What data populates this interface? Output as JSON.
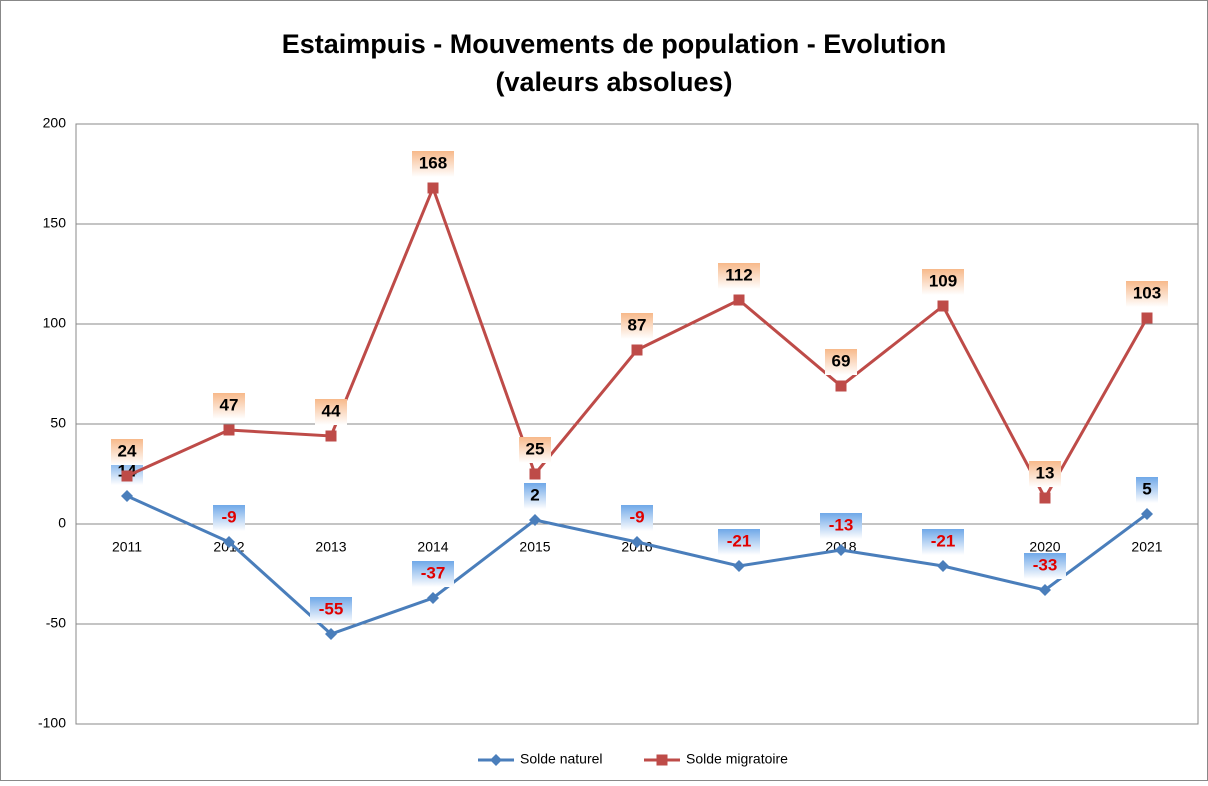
{
  "chart_data": {
    "type": "line",
    "title_lines": [
      "Estaimpuis - Mouvements de population - Evolution",
      "(valeurs absolues)"
    ],
    "categories": [
      "2011",
      "2012",
      "2013",
      "2014",
      "2015",
      "2016",
      "2017",
      "2018",
      "2019",
      "2020",
      "2021"
    ],
    "series": [
      {
        "name": "Solde naturel",
        "color": "#4a7ebb",
        "marker": "diamond",
        "label_fill": "#6fa8e8",
        "values": [
          14,
          -9,
          -55,
          -37,
          2,
          -9,
          -21,
          -13,
          -21,
          -33,
          5
        ]
      },
      {
        "name": "Solde migratoire",
        "color": "#be4b48",
        "marker": "square",
        "label_fill": "#f7b98a",
        "values": [
          24,
          47,
          44,
          168,
          25,
          87,
          112,
          69,
          109,
          13,
          103
        ]
      }
    ],
    "negative_label_color": "#e00000",
    "ylim": [
      -100,
      200
    ],
    "yticks": [
      -100,
      -50,
      0,
      50,
      100,
      150,
      200
    ],
    "grid": true,
    "legend": "bottom"
  }
}
